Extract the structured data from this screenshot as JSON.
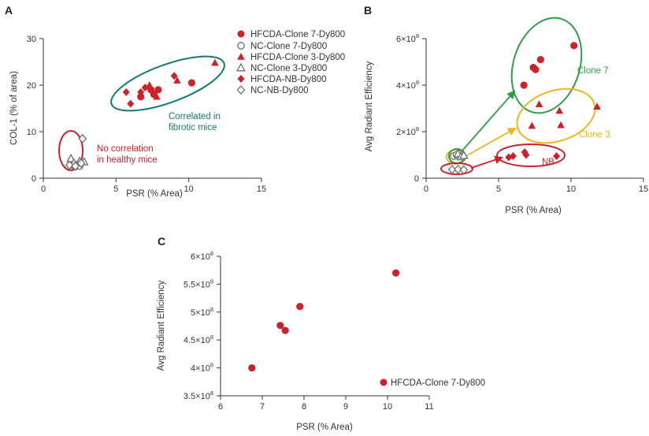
{
  "colors": {
    "red": "#d0202a",
    "gray": "#6e6e6e",
    "teal": "#127a72",
    "green": "#2ea043",
    "yellow": "#f0b41e"
  },
  "chart_data": [
    {
      "panel": "A",
      "type": "scatter",
      "xlabel": "PSR (% Area)",
      "ylabel": "COL-1 (% of area)",
      "xlim": [
        0,
        15
      ],
      "ylim": [
        0,
        30
      ],
      "xticks": [
        0,
        5,
        10,
        15
      ],
      "yticks": [
        0,
        10,
        20,
        30
      ],
      "xtick_labels": [
        "0",
        "5",
        "10",
        "15"
      ],
      "ytick_labels": [
        "0",
        "10",
        "20",
        "30"
      ],
      "series": [
        {
          "name": "HFCDA-Clone 7-Dy800",
          "marker": "circle-filled",
          "color": "red",
          "points": [
            [
              6.7,
              17.5
            ],
            [
              7.4,
              19.0
            ],
            [
              7.6,
              18.0
            ],
            [
              7.9,
              19.0
            ],
            [
              10.2,
              20.5
            ]
          ]
        },
        {
          "name": "NC-Clone 7-Dy800",
          "marker": "circle-open",
          "color": "gray",
          "points": [
            [
              2.0,
              2.8
            ],
            [
              2.2,
              2.5
            ],
            [
              2.4,
              3.0
            ],
            [
              2.5,
              2.6
            ]
          ]
        },
        {
          "name": "HFCDA-Clone 3-Dy800",
          "marker": "triangle-filled",
          "color": "red",
          "points": [
            [
              7.3,
              20.0
            ],
            [
              7.8,
              17.5
            ],
            [
              9.2,
              21.0
            ],
            [
              11.8,
              24.8
            ]
          ]
        },
        {
          "name": "NC-Clone 3-Dy800",
          "marker": "triangle-open",
          "color": "gray",
          "points": [
            [
              1.9,
              4.2
            ],
            [
              2.1,
              3.2
            ],
            [
              2.5,
              3.6
            ],
            [
              2.8,
              3.5
            ]
          ]
        },
        {
          "name": "HFCDA-NB-Dy800",
          "marker": "diamond-filled",
          "color": "red",
          "points": [
            [
              5.7,
              18.5
            ],
            [
              6.0,
              16.0
            ],
            [
              6.7,
              18.5
            ],
            [
              7.0,
              19.5
            ],
            [
              9.0,
              22.0
            ]
          ]
        },
        {
          "name": "NC-NB-Dy800",
          "marker": "diamond-open",
          "color": "gray",
          "points": [
            [
              1.8,
              2.8
            ],
            [
              2.2,
              2.6
            ],
            [
              2.6,
              3.2
            ],
            [
              2.7,
              8.5
            ]
          ]
        }
      ],
      "annotations": [
        {
          "lines": [
            "Correlated in",
            "fibrotic mice"
          ],
          "color": "teal"
        },
        {
          "lines": [
            "No correlation",
            "in healthy mice"
          ],
          "color": "red"
        }
      ]
    },
    {
      "panel": "B",
      "type": "scatter",
      "xlabel": "PSR (% Area)",
      "ylabel": "Avg Radiant Efficiency",
      "xlim": [
        0,
        15
      ],
      "ylim": [
        0,
        600000000
      ],
      "xticks": [
        0,
        5,
        10,
        15
      ],
      "yticks": [
        0,
        200000000,
        400000000,
        600000000
      ],
      "xtick_labels": [
        "0",
        "5",
        "10",
        "15"
      ],
      "ytick_labels": [
        "0",
        "2×10",
        "4×10",
        "6×10"
      ],
      "ytick_exponent": "8",
      "series": [
        {
          "name": "HFCDA-Clone 7-Dy800",
          "marker": "circle-filled",
          "color": "red",
          "points": [
            [
              6.75,
              400000000
            ],
            [
              7.4,
              476000000
            ],
            [
              7.55,
              467000000
            ],
            [
              7.9,
              510000000
            ],
            [
              10.2,
              570000000
            ]
          ]
        },
        {
          "name": "NC-Clone 7-Dy800",
          "marker": "circle-open",
          "color": "gray",
          "points": [
            [
              1.9,
              95000000
            ],
            [
              2.1,
              100000000
            ],
            [
              2.3,
              105000000
            ],
            [
              2.5,
              98000000
            ]
          ]
        },
        {
          "name": "HFCDA-Clone 3-Dy800",
          "marker": "triangle-filled",
          "color": "red",
          "points": [
            [
              7.3,
              225000000
            ],
            [
              7.8,
              318000000
            ],
            [
              9.2,
              290000000
            ],
            [
              9.3,
              228000000
            ],
            [
              11.8,
              308000000
            ]
          ]
        },
        {
          "name": "NC-Clone 3-Dy800",
          "marker": "triangle-open",
          "color": "gray",
          "points": [
            [
              2.2,
              105000000
            ],
            [
              2.4,
              92000000
            ],
            [
              2.6,
              98000000
            ]
          ]
        },
        {
          "name": "HFCDA-NB-Dy800",
          "marker": "diamond-filled",
          "color": "red",
          "points": [
            [
              5.7,
              90000000
            ],
            [
              6.0,
              95000000
            ],
            [
              6.8,
              112000000
            ],
            [
              6.9,
              100000000
            ],
            [
              9.0,
              95000000
            ]
          ]
        },
        {
          "name": "NC-NB-Dy800",
          "marker": "diamond-open",
          "color": "gray",
          "points": [
            [
              1.8,
              37000000
            ],
            [
              2.2,
              38000000
            ],
            [
              2.6,
              36000000
            ]
          ]
        }
      ],
      "annotations": [
        {
          "text": "Clone 7",
          "color": "green"
        },
        {
          "text": "Clone 3",
          "color": "yellow"
        },
        {
          "text": "NB",
          "color": "red"
        }
      ]
    },
    {
      "panel": "C",
      "type": "scatter",
      "xlabel": "PSR (% Area)",
      "ylabel": "Avg Radiant Efficiency",
      "xlim": [
        6,
        11
      ],
      "ylim": [
        350000000,
        600000000
      ],
      "xticks": [
        6,
        7,
        8,
        9,
        10,
        11
      ],
      "yticks": [
        350000000,
        400000000,
        450000000,
        500000000,
        550000000,
        600000000
      ],
      "xtick_labels": [
        "6",
        "7",
        "8",
        "9",
        "10",
        "11"
      ],
      "ytick_labels": [
        "3.5×10",
        "4×10",
        "4.5×10",
        "5×10",
        "5.5×10",
        "6×10"
      ],
      "ytick_exponent": "8",
      "series": [
        {
          "name": "HFCDA-Clone 7-Dy800",
          "marker": "circle-filled",
          "color": "red",
          "points": [
            [
              6.75,
              400000000
            ],
            [
              7.43,
              476000000
            ],
            [
              7.55,
              467000000
            ],
            [
              7.9,
              510000000
            ],
            [
              10.2,
              570000000
            ]
          ]
        }
      ],
      "legend_label": "HFCDA-Clone 7-Dy800"
    }
  ]
}
